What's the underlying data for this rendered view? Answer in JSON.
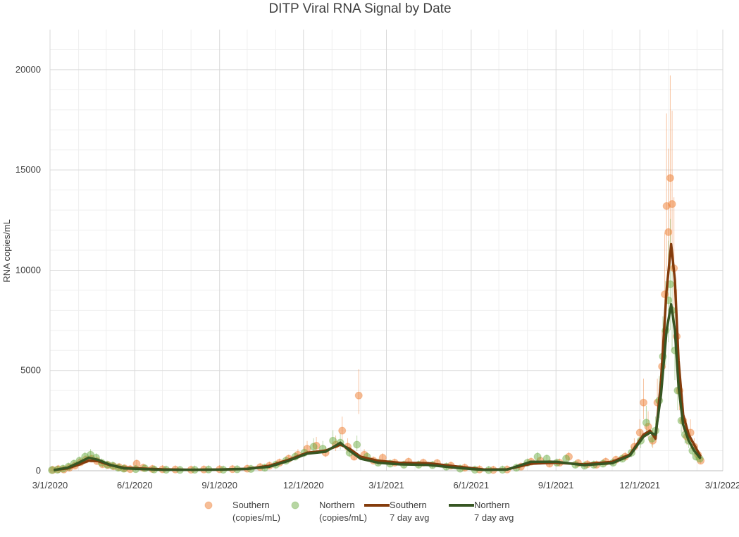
{
  "chart_data": {
    "type": "scatter",
    "title": "DITP Viral RNA Signal by Date",
    "ylabel": "RNA copies/mL",
    "xlabel": "",
    "x_range": [
      "2020-03-01",
      "2022-03-01"
    ],
    "ylim": [
      0,
      22000
    ],
    "y_ticks": [
      0,
      5000,
      10000,
      15000,
      20000
    ],
    "x_tick_labels": [
      "3/1/2020",
      "6/1/2020",
      "9/1/2020",
      "12/1/2020",
      "3/1/2021",
      "6/1/2021",
      "9/1/2021",
      "12/1/2021",
      "3/1/2022"
    ],
    "x_ticks": [
      "2020-03-01",
      "2020-06-01",
      "2020-09-01",
      "2020-12-01",
      "2021-03-01",
      "2021-06-01",
      "2021-09-01",
      "2021-12-01",
      "2022-03-01"
    ],
    "grid": true,
    "legend_placement": "bottom",
    "series": [
      {
        "name": "Southern (copies/mL)",
        "legend_lines": [
          "Southern",
          "(copies/mL)"
        ],
        "kind": "points",
        "color": "#ED7D31",
        "points": [
          [
            "2020-03-04",
            40
          ],
          [
            "2020-03-10",
            80
          ],
          [
            "2020-03-16",
            60
          ],
          [
            "2020-03-22",
            150
          ],
          [
            "2020-03-28",
            250
          ],
          [
            "2020-04-03",
            420
          ],
          [
            "2020-04-09",
            560
          ],
          [
            "2020-04-15",
            600
          ],
          [
            "2020-04-21",
            480
          ],
          [
            "2020-04-27",
            320
          ],
          [
            "2020-05-03",
            280
          ],
          [
            "2020-05-09",
            220
          ],
          [
            "2020-05-15",
            180
          ],
          [
            "2020-05-21",
            120
          ],
          [
            "2020-05-27",
            80
          ],
          [
            "2020-06-03",
            350
          ],
          [
            "2020-06-10",
            150
          ],
          [
            "2020-06-20",
            90
          ],
          [
            "2020-07-01",
            70
          ],
          [
            "2020-07-15",
            60
          ],
          [
            "2020-08-01",
            50
          ],
          [
            "2020-08-15",
            60
          ],
          [
            "2020-09-01",
            70
          ],
          [
            "2020-09-15",
            80
          ],
          [
            "2020-10-01",
            100
          ],
          [
            "2020-10-15",
            180
          ],
          [
            "2020-10-25",
            250
          ],
          [
            "2020-11-05",
            400
          ],
          [
            "2020-11-15",
            600
          ],
          [
            "2020-11-25",
            800
          ],
          [
            "2020-12-05",
            1100
          ],
          [
            "2020-12-15",
            1250
          ],
          [
            "2020-12-25",
            900
          ],
          [
            "2021-01-05",
            1300
          ],
          [
            "2021-01-12",
            2000
          ],
          [
            "2021-01-18",
            1200
          ],
          [
            "2021-01-25",
            700
          ],
          [
            "2021-01-30",
            3750
          ],
          [
            "2021-02-05",
            800
          ],
          [
            "2021-02-15",
            500
          ],
          [
            "2021-02-25",
            650
          ],
          [
            "2021-03-10",
            400
          ],
          [
            "2021-03-25",
            450
          ],
          [
            "2021-04-10",
            400
          ],
          [
            "2021-04-25",
            380
          ],
          [
            "2021-05-10",
            250
          ],
          [
            "2021-05-25",
            150
          ],
          [
            "2021-06-10",
            60
          ],
          [
            "2021-06-25",
            40
          ],
          [
            "2021-07-10",
            60
          ],
          [
            "2021-07-25",
            200
          ],
          [
            "2021-08-05",
            450
          ],
          [
            "2021-08-15",
            500
          ],
          [
            "2021-08-25",
            350
          ],
          [
            "2021-09-05",
            400
          ],
          [
            "2021-09-15",
            700
          ],
          [
            "2021-09-25",
            380
          ],
          [
            "2021-10-05",
            320
          ],
          [
            "2021-10-15",
            300
          ],
          [
            "2021-10-25",
            450
          ],
          [
            "2021-11-05",
            550
          ],
          [
            "2021-11-15",
            700
          ],
          [
            "2021-11-25",
            1200
          ],
          [
            "2021-12-01",
            1900
          ],
          [
            "2021-12-05",
            3400
          ],
          [
            "2021-12-10",
            2200
          ],
          [
            "2021-12-15",
            1500
          ],
          [
            "2021-12-20",
            3400
          ],
          [
            "2021-12-25",
            5200
          ],
          [
            "2021-12-28",
            8800
          ],
          [
            "2021-12-30",
            13200
          ],
          [
            "2022-01-01",
            11900
          ],
          [
            "2022-01-03",
            14600
          ],
          [
            "2022-01-05",
            13300
          ],
          [
            "2022-01-07",
            10100
          ],
          [
            "2022-01-10",
            6700
          ],
          [
            "2022-01-13",
            4000
          ],
          [
            "2022-01-17",
            2500
          ],
          [
            "2022-01-21",
            1700
          ],
          [
            "2022-01-25",
            1900
          ],
          [
            "2022-01-29",
            1200
          ],
          [
            "2022-02-02",
            800
          ],
          [
            "2022-02-05",
            500
          ]
        ]
      },
      {
        "name": "Northern (copies/mL)",
        "legend_lines": [
          "Northern",
          "(copies/mL)"
        ],
        "kind": "points",
        "color": "#70AD47",
        "points": [
          [
            "2020-03-03",
            30
          ],
          [
            "2020-03-09",
            50
          ],
          [
            "2020-03-15",
            100
          ],
          [
            "2020-03-21",
            200
          ],
          [
            "2020-03-27",
            350
          ],
          [
            "2020-04-02",
            500
          ],
          [
            "2020-04-08",
            700
          ],
          [
            "2020-04-14",
            800
          ],
          [
            "2020-04-20",
            650
          ],
          [
            "2020-04-26",
            400
          ],
          [
            "2020-05-02",
            300
          ],
          [
            "2020-05-08",
            250
          ],
          [
            "2020-05-14",
            150
          ],
          [
            "2020-05-20",
            100
          ],
          [
            "2020-06-02",
            80
          ],
          [
            "2020-06-12",
            120
          ],
          [
            "2020-06-22",
            60
          ],
          [
            "2020-07-05",
            50
          ],
          [
            "2020-07-20",
            40
          ],
          [
            "2020-08-05",
            50
          ],
          [
            "2020-08-20",
            60
          ],
          [
            "2020-09-05",
            50
          ],
          [
            "2020-09-20",
            70
          ],
          [
            "2020-10-05",
            90
          ],
          [
            "2020-10-20",
            150
          ],
          [
            "2020-11-01",
            300
          ],
          [
            "2020-11-12",
            500
          ],
          [
            "2020-11-22",
            700
          ],
          [
            "2020-12-02",
            900
          ],
          [
            "2020-12-12",
            1200
          ],
          [
            "2020-12-22",
            1100
          ],
          [
            "2021-01-02",
            1500
          ],
          [
            "2021-01-10",
            1400
          ],
          [
            "2021-01-20",
            900
          ],
          [
            "2021-01-28",
            1300
          ],
          [
            "2021-02-08",
            700
          ],
          [
            "2021-02-20",
            400
          ],
          [
            "2021-03-05",
            350
          ],
          [
            "2021-03-20",
            300
          ],
          [
            "2021-04-05",
            300
          ],
          [
            "2021-04-20",
            280
          ],
          [
            "2021-05-05",
            200
          ],
          [
            "2021-05-20",
            100
          ],
          [
            "2021-06-05",
            50
          ],
          [
            "2021-06-20",
            30
          ],
          [
            "2021-07-05",
            50
          ],
          [
            "2021-07-20",
            150
          ],
          [
            "2021-08-01",
            400
          ],
          [
            "2021-08-12",
            700
          ],
          [
            "2021-08-22",
            600
          ],
          [
            "2021-09-02",
            400
          ],
          [
            "2021-09-12",
            600
          ],
          [
            "2021-09-22",
            300
          ],
          [
            "2021-10-02",
            250
          ],
          [
            "2021-10-12",
            300
          ],
          [
            "2021-10-22",
            350
          ],
          [
            "2021-11-02",
            400
          ],
          [
            "2021-11-12",
            600
          ],
          [
            "2021-11-22",
            900
          ],
          [
            "2021-12-02",
            1500
          ],
          [
            "2021-12-08",
            2400
          ],
          [
            "2021-12-14",
            1600
          ],
          [
            "2021-12-18",
            2000
          ],
          [
            "2021-12-22",
            3500
          ],
          [
            "2021-12-26",
            5700
          ],
          [
            "2021-12-29",
            7000
          ],
          [
            "2022-01-01",
            8500
          ],
          [
            "2022-01-03",
            9300
          ],
          [
            "2022-01-05",
            8000
          ],
          [
            "2022-01-08",
            6000
          ],
          [
            "2022-01-11",
            4000
          ],
          [
            "2022-01-15",
            2500
          ],
          [
            "2022-01-19",
            1800
          ],
          [
            "2022-01-23",
            1500
          ],
          [
            "2022-01-27",
            1000
          ],
          [
            "2022-01-31",
            700
          ],
          [
            "2022-02-04",
            600
          ]
        ]
      },
      {
        "name": "Southern 7 day avg",
        "legend_lines": [
          "Southern",
          "7 day avg"
        ],
        "kind": "line",
        "color": "#843C0C",
        "points": [
          [
            "2020-03-05",
            40
          ],
          [
            "2020-03-20",
            120
          ],
          [
            "2020-04-01",
            300
          ],
          [
            "2020-04-12",
            500
          ],
          [
            "2020-04-22",
            480
          ],
          [
            "2020-05-05",
            280
          ],
          [
            "2020-05-20",
            150
          ],
          [
            "2020-06-05",
            120
          ],
          [
            "2020-07-01",
            70
          ],
          [
            "2020-08-01",
            50
          ],
          [
            "2020-09-01",
            60
          ],
          [
            "2020-10-01",
            100
          ],
          [
            "2020-10-25",
            250
          ],
          [
            "2020-11-15",
            550
          ],
          [
            "2020-12-05",
            900
          ],
          [
            "2020-12-25",
            1000
          ],
          [
            "2021-01-10",
            1300
          ],
          [
            "2021-01-20",
            1100
          ],
          [
            "2021-02-01",
            700
          ],
          [
            "2021-02-20",
            500
          ],
          [
            "2021-03-15",
            400
          ],
          [
            "2021-04-15",
            380
          ],
          [
            "2021-05-15",
            220
          ],
          [
            "2021-06-15",
            60
          ],
          [
            "2021-07-10",
            70
          ],
          [
            "2021-08-05",
            350
          ],
          [
            "2021-09-01",
            400
          ],
          [
            "2021-10-01",
            320
          ],
          [
            "2021-11-01",
            450
          ],
          [
            "2021-11-20",
            800
          ],
          [
            "2021-12-05",
            1800
          ],
          [
            "2021-12-12",
            2000
          ],
          [
            "2021-12-18",
            1600
          ],
          [
            "2021-12-24",
            4500
          ],
          [
            "2021-12-30",
            9000
          ],
          [
            "2022-01-04",
            11300
          ],
          [
            "2022-01-08",
            9500
          ],
          [
            "2022-01-12",
            5500
          ],
          [
            "2022-01-17",
            2800
          ],
          [
            "2022-01-23",
            1800
          ],
          [
            "2022-01-29",
            1300
          ],
          [
            "2022-02-05",
            700
          ]
        ]
      },
      {
        "name": "Northern 7 day avg",
        "legend_lines": [
          "Northern",
          "7 day avg"
        ],
        "kind": "line",
        "color": "#375623",
        "points": [
          [
            "2020-03-05",
            30
          ],
          [
            "2020-03-20",
            150
          ],
          [
            "2020-04-01",
            400
          ],
          [
            "2020-04-12",
            650
          ],
          [
            "2020-04-22",
            550
          ],
          [
            "2020-05-05",
            300
          ],
          [
            "2020-05-20",
            120
          ],
          [
            "2020-06-05",
            90
          ],
          [
            "2020-07-01",
            50
          ],
          [
            "2020-08-01",
            50
          ],
          [
            "2020-09-01",
            55
          ],
          [
            "2020-10-01",
            90
          ],
          [
            "2020-10-25",
            200
          ],
          [
            "2020-11-15",
            500
          ],
          [
            "2020-12-05",
            850
          ],
          [
            "2020-12-25",
            950
          ],
          [
            "2021-01-10",
            1400
          ],
          [
            "2021-01-20",
            1000
          ],
          [
            "2021-02-01",
            600
          ],
          [
            "2021-02-20",
            400
          ],
          [
            "2021-03-15",
            320
          ],
          [
            "2021-04-15",
            290
          ],
          [
            "2021-05-15",
            150
          ],
          [
            "2021-06-15",
            40
          ],
          [
            "2021-07-10",
            60
          ],
          [
            "2021-08-05",
            450
          ],
          [
            "2021-09-01",
            450
          ],
          [
            "2021-10-01",
            280
          ],
          [
            "2021-11-01",
            380
          ],
          [
            "2021-11-20",
            750
          ],
          [
            "2021-12-05",
            1700
          ],
          [
            "2021-12-12",
            1900
          ],
          [
            "2021-12-18",
            1800
          ],
          [
            "2021-12-24",
            3800
          ],
          [
            "2021-12-30",
            7000
          ],
          [
            "2022-01-04",
            8300
          ],
          [
            "2022-01-08",
            7000
          ],
          [
            "2022-01-12",
            4200
          ],
          [
            "2022-01-17",
            2300
          ],
          [
            "2022-01-23",
            1500
          ],
          [
            "2022-01-29",
            1000
          ],
          [
            "2022-02-05",
            600
          ]
        ]
      }
    ]
  }
}
